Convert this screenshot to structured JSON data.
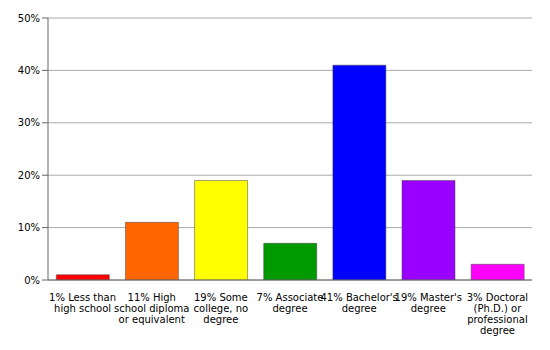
{
  "chart_data": {
    "type": "bar",
    "categories": [
      "1% Less than high school",
      "11% High school diploma or equivalent",
      "19% Some college, no degree",
      "7% Associate degree",
      "41% Bachelor's degree",
      "19% Master's degree",
      "3% Doctoral (Ph.D.) or professional degree"
    ],
    "values": [
      1,
      11,
      19,
      7,
      41,
      19,
      3
    ],
    "colors": [
      "#ff0000",
      "#ff6600",
      "#ffff00",
      "#009900",
      "#0000ff",
      "#9900ff",
      "#ff00ff"
    ],
    "ylim": [
      0,
      50
    ],
    "yticks": [
      {
        "value": 0,
        "label": "0%"
      },
      {
        "value": 10,
        "label": "10%"
      },
      {
        "value": 20,
        "label": "20%"
      },
      {
        "value": 30,
        "label": "30%"
      },
      {
        "value": 40,
        "label": "40%"
      },
      {
        "value": 50,
        "label": "50%"
      }
    ],
    "grid": true
  }
}
